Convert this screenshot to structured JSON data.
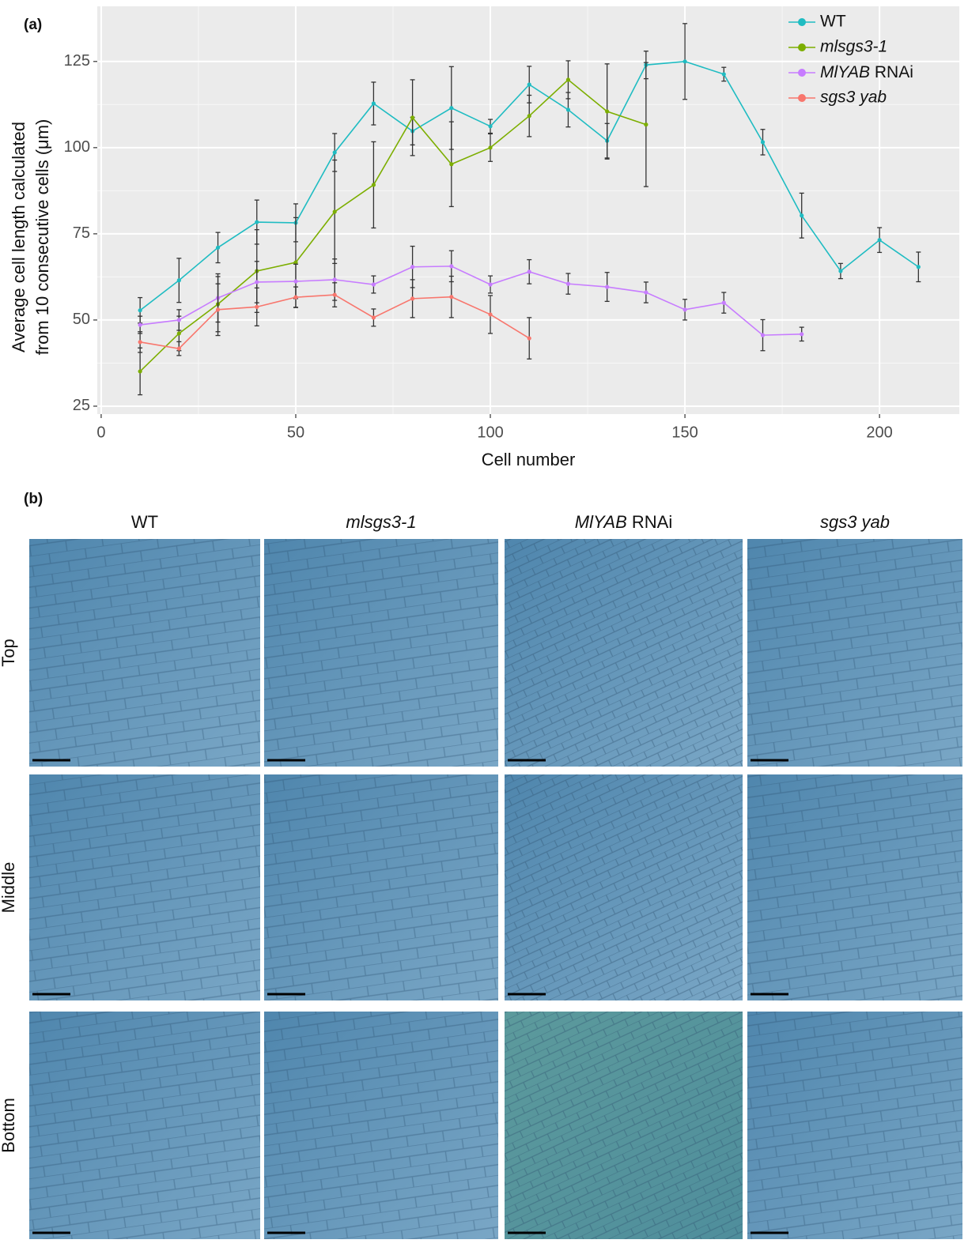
{
  "panel_a_label": "(a)",
  "chart_data": {
    "type": "line",
    "xlabel": "Cell number",
    "ylabel": [
      "Average cell length calculated",
      "from 10 consecutive cells (μm)"
    ],
    "xlim": [
      -1,
      220.5
    ],
    "xticks": [
      0,
      50,
      100,
      150,
      200
    ],
    "ylim": [
      22.7,
      141
    ],
    "yticks": [
      25,
      50,
      75,
      100,
      125
    ],
    "grid": true,
    "legend": "top-right",
    "series": [
      {
        "name": "WT",
        "color": "#1fbcc2",
        "x": [
          10,
          20,
          30,
          40,
          50,
          60,
          70,
          80,
          90,
          100,
          110,
          120,
          130,
          140,
          150,
          160,
          170,
          180,
          190,
          200,
          210
        ],
        "values": [
          52.8,
          61.5,
          71,
          78.4,
          78.2,
          98.6,
          112.8,
          104.8,
          111.5,
          106.2,
          118.3,
          111,
          102,
          124,
          125,
          121.3,
          101.6,
          80.3,
          64.2,
          73.2,
          65.4
        ],
        "errors": [
          3.7,
          6.4,
          4.4,
          6.4,
          5.5,
          5.5,
          6.2,
          4,
          12,
          2,
          5.3,
          5,
          5,
          4,
          11,
          2,
          3.7,
          6.5,
          2.2,
          3.6,
          4.3
        ]
      },
      {
        "name": "mlsgs3-1",
        "color": "#7cae00",
        "x": [
          10,
          20,
          30,
          40,
          50,
          60,
          70,
          80,
          90,
          100,
          110,
          120,
          130,
          140
        ],
        "values": [
          35.1,
          46.1,
          54.6,
          64.2,
          66.7,
          81.4,
          89.2,
          108.7,
          95.2,
          100,
          109.2,
          119.7,
          110.5,
          106.7
        ],
        "errors": [
          6.8,
          5,
          8,
          12,
          13,
          15,
          12.5,
          11,
          12.3,
          4,
          6,
          5.5,
          13.8,
          18
        ]
      },
      {
        "name": "MlYAB RNAi",
        "color": "#c77cff",
        "x": [
          10,
          20,
          30,
          40,
          50,
          60,
          70,
          80,
          90,
          100,
          110,
          120,
          130,
          140,
          150,
          160,
          170,
          180
        ],
        "values": [
          48.6,
          50,
          56.4,
          61,
          61.2,
          61.7,
          60.3,
          65.4,
          65.6,
          60.3,
          64,
          60.5,
          59.6,
          58,
          53,
          55,
          45.6,
          45.9
        ],
        "errors": [
          2.5,
          3,
          7,
          6,
          5,
          6,
          2.5,
          6,
          4.5,
          2.5,
          3.5,
          3,
          4.2,
          3,
          3,
          3,
          4.5,
          2
        ]
      },
      {
        "name": "sgs3 yab",
        "color": "#f8766d",
        "x": [
          10,
          20,
          30,
          40,
          50,
          60,
          70,
          80,
          90,
          100,
          110
        ],
        "values": [
          43.6,
          41.7,
          53,
          53.8,
          56.6,
          57.3,
          50.7,
          56.2,
          56.7,
          51.6,
          44.7
        ],
        "errors": [
          3,
          2,
          7.5,
          5.5,
          3,
          3.5,
          2.5,
          5.5,
          6,
          5.5,
          6
        ]
      }
    ]
  },
  "panel_b": {
    "label": "(b)",
    "columns": [
      "WT",
      "mlsgs3-1",
      "MlYAB RNAi",
      "sgs3 yab"
    ],
    "rows": [
      "Top",
      "Middle",
      "Bottom"
    ]
  }
}
